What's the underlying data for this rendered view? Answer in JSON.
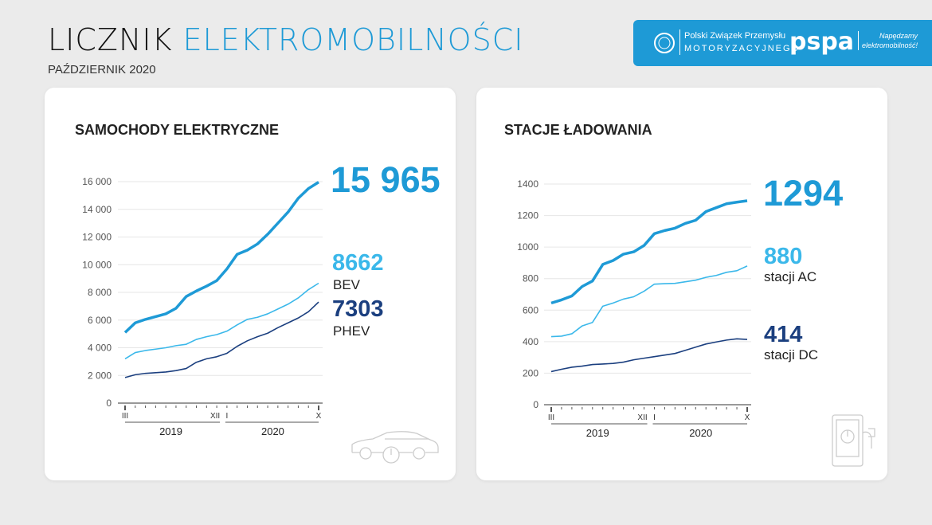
{
  "header": {
    "title_part1": "LICZNIK",
    "title_part2": "ELEKTROMOBILNOŚCI",
    "subtitle": "PAŹDZIERNIK 2020"
  },
  "banner": {
    "org1_line1": "Polski Związek Przemysłu",
    "org1_line2": "MOTORYZACYJNEGO",
    "org2": "pspa",
    "org2_slogan_line1": "Napędzamy",
    "org2_slogan_line2": "elektromobilność!",
    "color": "#1e9ad6"
  },
  "chart_data": [
    {
      "type": "line",
      "title": "SAMOCHODY ELEKTRYCZNE",
      "ylim": [
        0,
        16000
      ],
      "yticks": [
        "0",
        "2 000",
        "4 000",
        "6 000",
        "8 000",
        "10 000",
        "12 000",
        "14 000",
        "16 000"
      ],
      "ytick_values": [
        0,
        2000,
        4000,
        6000,
        8000,
        10000,
        12000,
        14000,
        16000
      ],
      "x": [
        "III 2019",
        "IV 2019",
        "V 2019",
        "VI 2019",
        "VII 2019",
        "VIII 2019",
        "IX 2019",
        "X 2019",
        "XI 2019",
        "XII 2019",
        "I 2020",
        "II 2020",
        "III 2020",
        "IV 2020",
        "V 2020",
        "VI 2020",
        "VII 2020",
        "VIII 2020",
        "IX 2020",
        "X 2020"
      ],
      "xtick_labels": {
        "start": "III",
        "end2019": "XII",
        "start2020": "I",
        "end": "X"
      },
      "years": [
        "2019",
        "2020"
      ],
      "grid": true,
      "series": [
        {
          "name": "",
          "total": "15 965",
          "color": "#1e9ad6",
          "values": [
            5100,
            5800,
            6050,
            6250,
            6450,
            6850,
            7700,
            8100,
            8450,
            8850,
            9700,
            10750,
            11050,
            11500,
            12200,
            13000,
            13800,
            14800,
            15500,
            15965
          ]
        },
        {
          "name": "BEV",
          "total": "8662",
          "color": "#3bb8ea",
          "values": [
            3200,
            3650,
            3800,
            3900,
            4000,
            4150,
            4250,
            4600,
            4800,
            4950,
            5200,
            5650,
            6050,
            6200,
            6450,
            6800,
            7150,
            7600,
            8200,
            8662
          ]
        },
        {
          "name": "PHEV",
          "total": "7303",
          "color": "#1b3f7f",
          "values": [
            1850,
            2050,
            2150,
            2200,
            2250,
            2350,
            2500,
            2950,
            3200,
            3350,
            3600,
            4100,
            4500,
            4800,
            5050,
            5450,
            5800,
            6150,
            6600,
            7303
          ]
        }
      ]
    },
    {
      "type": "line",
      "title": "STACJE ŁADOWANIA",
      "ylim": [
        0,
        1400
      ],
      "yticks": [
        "0",
        "200",
        "400",
        "600",
        "800",
        "1000",
        "1200",
        "1400"
      ],
      "ytick_values": [
        0,
        200,
        400,
        600,
        800,
        1000,
        1200,
        1400
      ],
      "x": [
        "III 2019",
        "IV 2019",
        "V 2019",
        "VI 2019",
        "VII 2019",
        "VIII 2019",
        "IX 2019",
        "X 2019",
        "XI 2019",
        "XII 2019",
        "I 2020",
        "II 2020",
        "III 2020",
        "IV 2020",
        "V 2020",
        "VI 2020",
        "VII 2020",
        "VIII 2020",
        "IX 2020",
        "X 2020"
      ],
      "xtick_labels": {
        "start": "III",
        "end2019": "XII",
        "start2020": "I",
        "end": "X"
      },
      "years": [
        "2019",
        "2020"
      ],
      "grid": true,
      "series": [
        {
          "name": "",
          "total": "1294",
          "color": "#1e9ad6",
          "values": [
            645,
            665,
            690,
            750,
            785,
            890,
            915,
            955,
            970,
            1010,
            1085,
            1105,
            1120,
            1150,
            1170,
            1225,
            1250,
            1275,
            1285,
            1294
          ]
        },
        {
          "name": "stacji AC",
          "total": "880",
          "color": "#3bb8ea",
          "values": [
            432,
            435,
            450,
            500,
            522,
            625,
            645,
            670,
            685,
            720,
            765,
            768,
            770,
            780,
            790,
            808,
            820,
            840,
            850,
            880
          ]
        },
        {
          "name": "stacji DC",
          "total": "414",
          "color": "#1b3f7f",
          "values": [
            210,
            225,
            238,
            245,
            255,
            258,
            262,
            270,
            285,
            295,
            305,
            315,
            325,
            345,
            365,
            385,
            398,
            410,
            418,
            414
          ]
        }
      ]
    }
  ]
}
